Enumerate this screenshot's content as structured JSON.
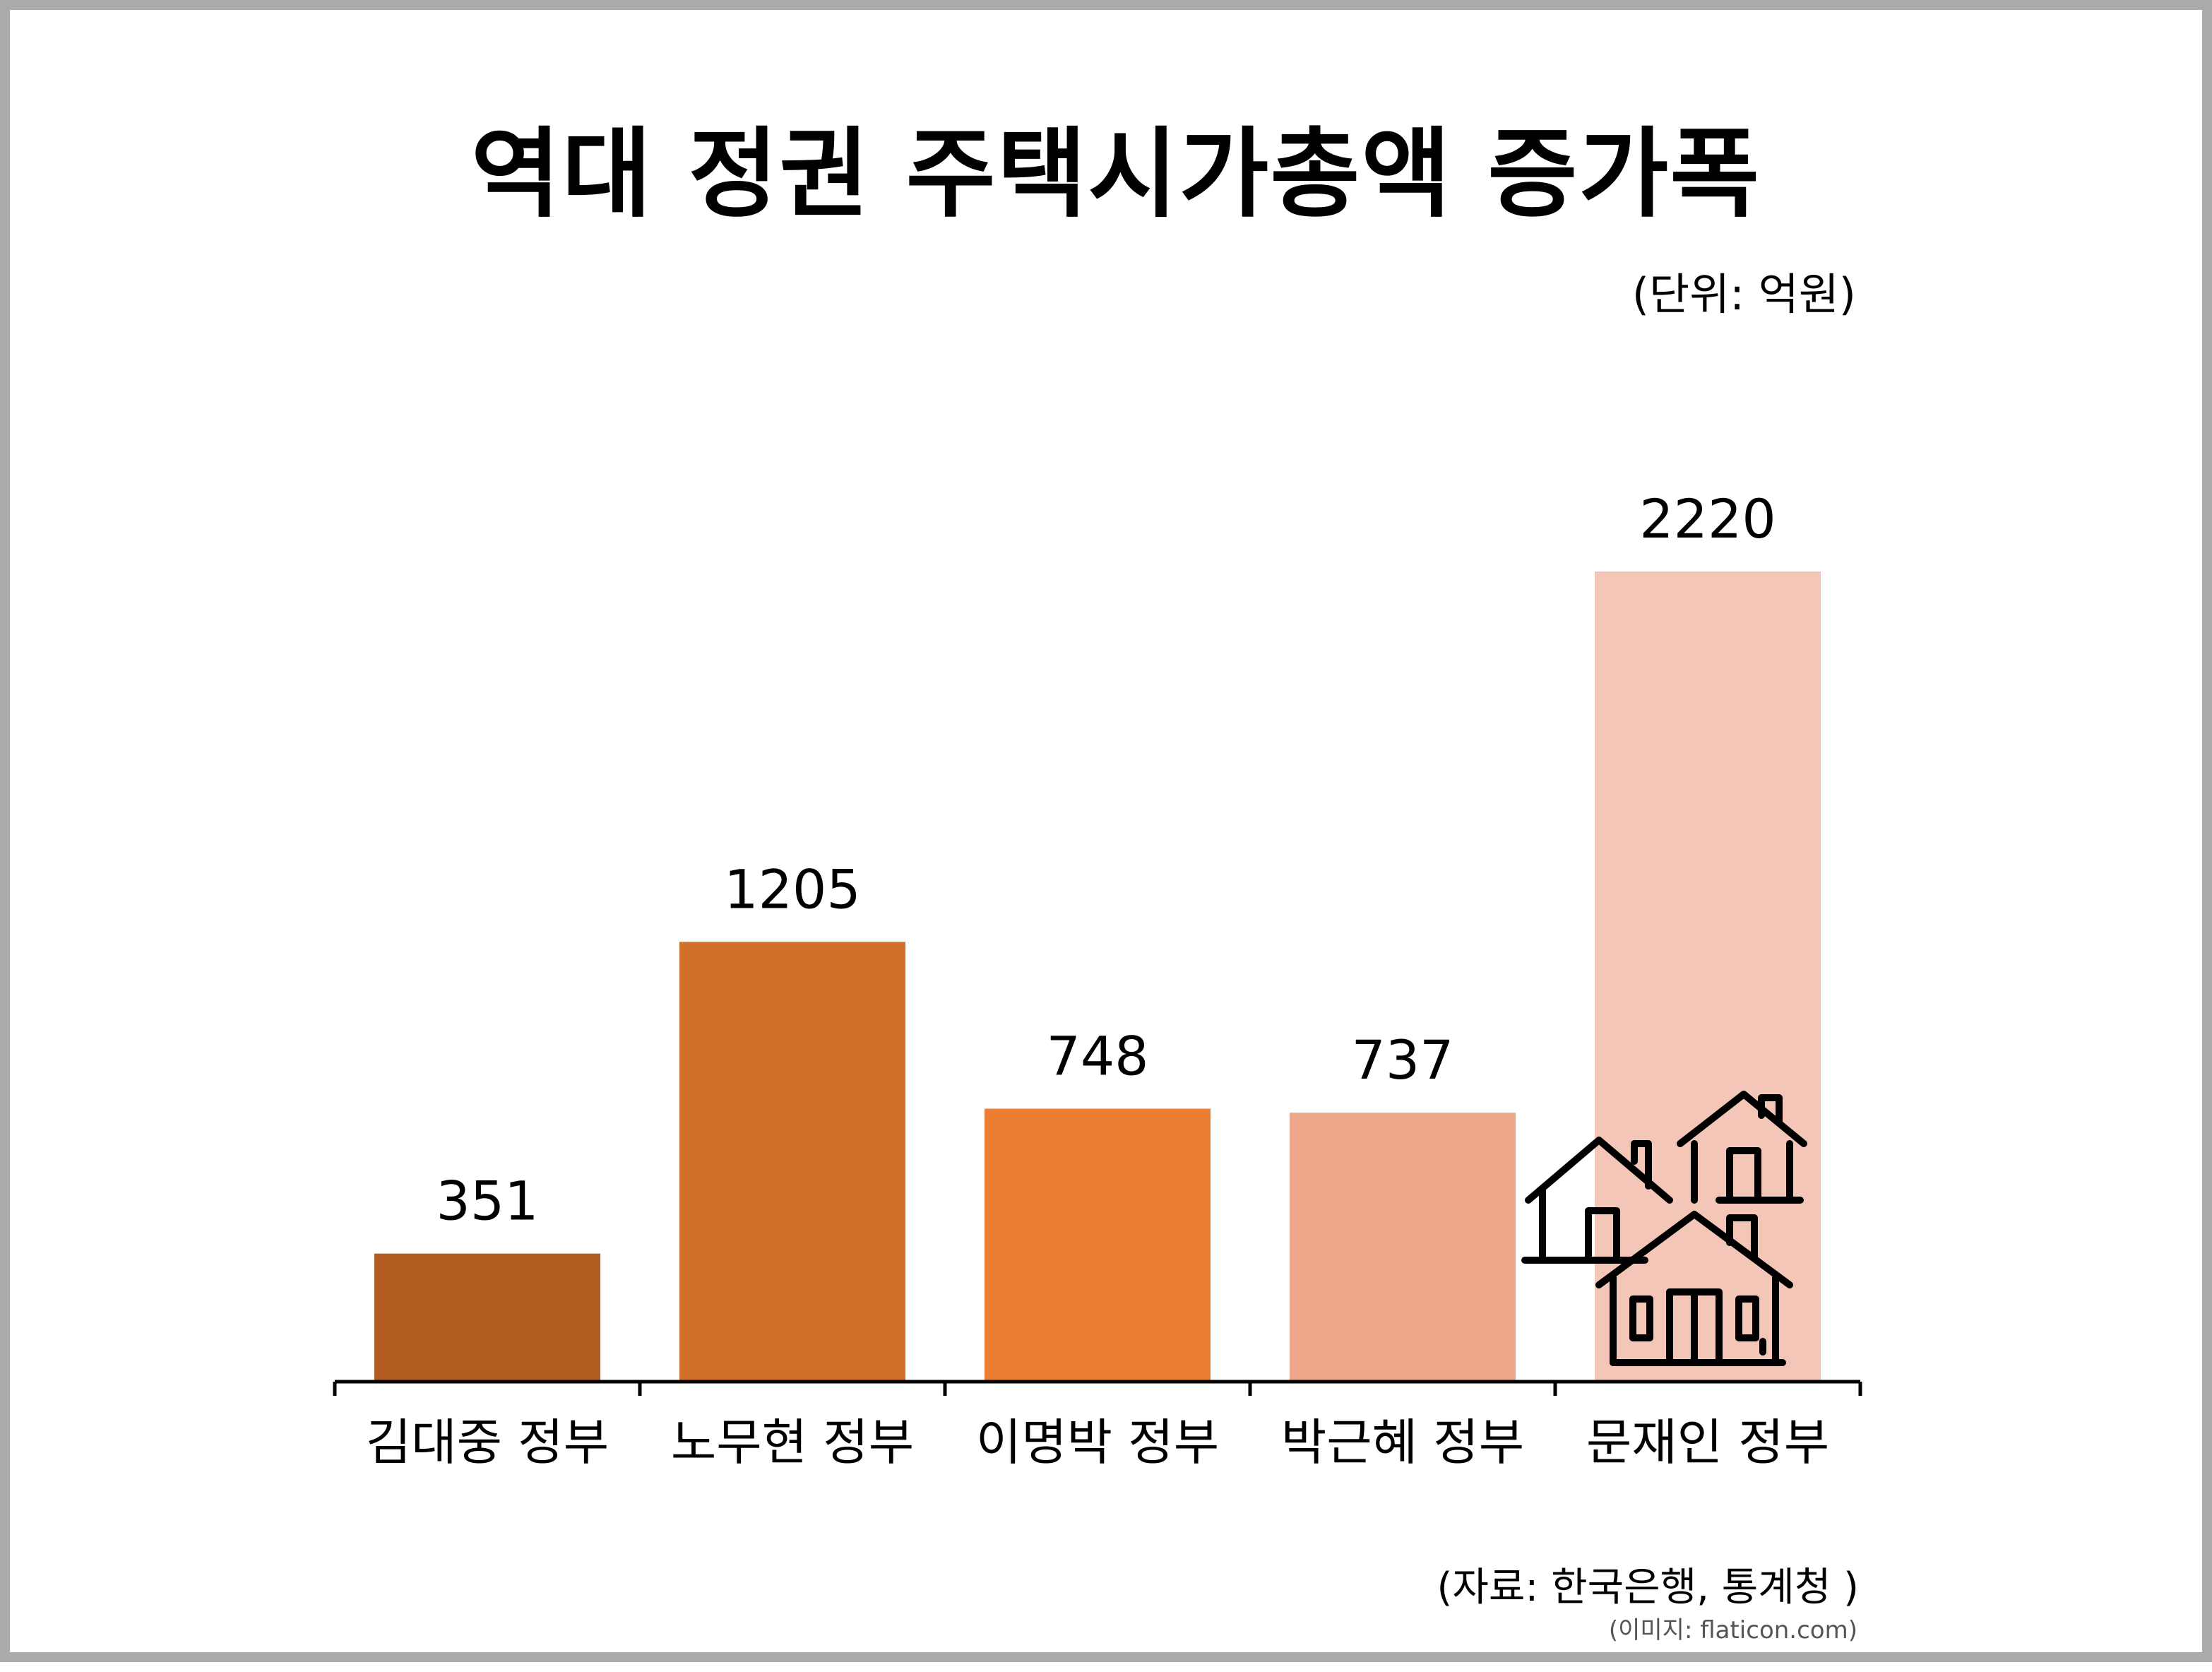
{
  "title": "역대 정권 주택시가총액 증가폭",
  "unit": "(단위: 억원)",
  "source": "(자료: 한국은행, 통계청 )",
  "image_credit": "(이미지: flaticon.com)",
  "icons": [
    "house-icon",
    "house-icon",
    "house-icon"
  ],
  "chart_data": {
    "type": "bar",
    "categories": [
      "김대중 정부",
      "노무현 정부",
      "이명박 정부",
      "박근혜 정부",
      "문재인 정부"
    ],
    "values": [
      351,
      1205,
      748,
      737,
      2220
    ],
    "data_labels": [
      "351",
      "1205",
      "748",
      "737",
      "2220"
    ],
    "colors": [
      "#b35c22",
      "#d2702a",
      "#ec7e33",
      "#f0a88c",
      "#f4c6b8"
    ],
    "ylim": [
      0,
      2220
    ],
    "grid": false,
    "legend": "none"
  }
}
